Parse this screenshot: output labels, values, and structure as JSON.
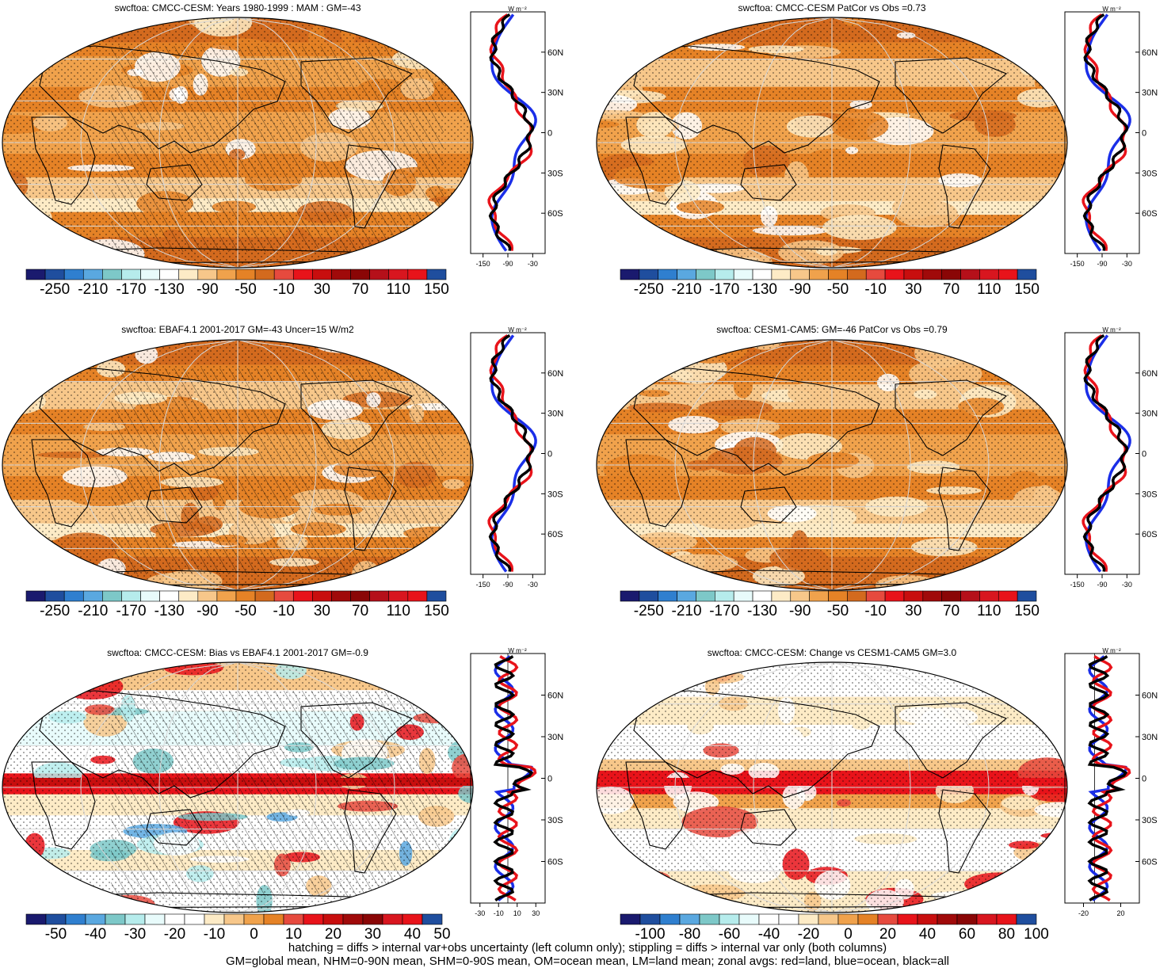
{
  "panels": [
    {
      "title": "swcftoa: CMCC-CESM: Years 1980-1999 : MAM : GM=-43",
      "cbar_labels": [
        "-250",
        "-210",
        "-170",
        "-130",
        "-90",
        "-50",
        "-10",
        "30",
        "70",
        "110",
        "150"
      ],
      "cbar_type": "abs",
      "zonal_ticks": [
        "-150",
        "-90",
        "-30"
      ],
      "unit": "W m⁻²",
      "lat_ticks": [
        "60N",
        "30N",
        "0",
        "30S",
        "60S"
      ],
      "hatch": true,
      "kind": "abs1"
    },
    {
      "title": "swcftoa: CMCC-CESM PatCor vs Obs =0.73",
      "cbar_labels": [
        "-250",
        "-210",
        "-170",
        "-130",
        "-90",
        "-50",
        "-10",
        "30",
        "70",
        "110",
        "150"
      ],
      "cbar_type": "abs",
      "zonal_ticks": [
        "-150",
        "-90",
        "-30"
      ],
      "unit": "W m⁻²",
      "lat_ticks": [
        "60N",
        "30N",
        "0",
        "30S",
        "60S"
      ],
      "hatch": false,
      "kind": "abs2"
    },
    {
      "title": "swcftoa: EBAF4.1 2001-2017 GM=-43 Uncer=15 W/m2",
      "cbar_labels": [
        "-250",
        "-210",
        "-170",
        "-130",
        "-90",
        "-50",
        "-10",
        "30",
        "70",
        "110",
        "150"
      ],
      "cbar_type": "abs",
      "zonal_ticks": [
        "-150",
        "-90",
        "-30"
      ],
      "unit": "W m⁻²",
      "lat_ticks": [
        "60N",
        "30N",
        "0",
        "30S",
        "60S"
      ],
      "hatch": true,
      "kind": "abs3"
    },
    {
      "title": "swcftoa: CESM1-CAM5: GM=-46 PatCor vs Obs =0.79",
      "cbar_labels": [
        "-250",
        "-210",
        "-170",
        "-130",
        "-90",
        "-50",
        "-10",
        "30",
        "70",
        "110",
        "150"
      ],
      "cbar_type": "abs",
      "zonal_ticks": [
        "-150",
        "-90",
        "-30"
      ],
      "unit": "W m⁻²",
      "lat_ticks": [
        "60N",
        "30N",
        "0",
        "30S",
        "60S"
      ],
      "hatch": false,
      "kind": "abs4"
    },
    {
      "title": "swcftoa: CMCC-CESM: Bias vs EBAF4.1 2001-2017 GM=-0.9",
      "cbar_labels": [
        "-50",
        "-40",
        "-30",
        "-20",
        "-10",
        "0",
        "10",
        "20",
        "30",
        "40",
        "50"
      ],
      "cbar_type": "diff",
      "zonal_ticks": [
        "-30",
        "-10",
        "10",
        "30"
      ],
      "unit": "W m⁻²",
      "lat_ticks": [
        "60N",
        "30N",
        "0",
        "30S",
        "60S"
      ],
      "hatch": true,
      "kind": "bias"
    },
    {
      "title": "swcftoa: CMCC-CESM: Change vs CESM1-CAM5 GM=3.0",
      "cbar_labels": [
        "-100",
        "-80",
        "-60",
        "-40",
        "-20",
        "0",
        "20",
        "40",
        "60",
        "80",
        "100"
      ],
      "cbar_type": "diff",
      "zonal_ticks": [
        "-20",
        "20"
      ],
      "unit": "W m⁻²",
      "lat_ticks": [
        "60N",
        "30N",
        "0",
        "30S",
        "60S"
      ],
      "hatch": false,
      "kind": "change"
    }
  ],
  "colors": {
    "abs_palette": [
      "#1a1a6e",
      "#1f4e9e",
      "#2f7fcf",
      "#5aa8e0",
      "#7dc8c8",
      "#b6ecec",
      "#e8fbfb",
      "#ffffff",
      "#fdebc6",
      "#f7c78a",
      "#f0a24c",
      "#e58226",
      "#d36a1e",
      "#e64a3e",
      "#e8131a",
      "#c80e0e",
      "#a00a0a",
      "#8a0606",
      "#b5101a",
      "#d8161f",
      "#e8131a",
      "#1f4e9e"
    ],
    "diff_palette": [
      "#1a1a6e",
      "#1f4e9e",
      "#2f7fcf",
      "#5aa8e0",
      "#7dc8c8",
      "#b6ecec",
      "#e8fbfb",
      "#ffffff",
      "#ffffff",
      "#fdebc6",
      "#f7c78a",
      "#f0a24c",
      "#e58226",
      "#e64a3e",
      "#e8131a",
      "#c80e0e",
      "#a00a0a",
      "#8a0606",
      "#d8161f",
      "#e8131a",
      "#1f4e9e"
    ],
    "land_line": "#e8131a",
    "ocean_line": "#1a2ee8",
    "all_line": "#000000"
  },
  "footer": {
    "line1": "hatching = diffs > internal var+obs uncertainty (left column only); stippling = diffs > internal var only (both columns)",
    "line2": "GM=global mean, NHM=0-90N mean, SHM=0-90S mean, OM=ocean mean, LM=land mean; zonal avgs: red=land, blue=ocean, black=all"
  }
}
